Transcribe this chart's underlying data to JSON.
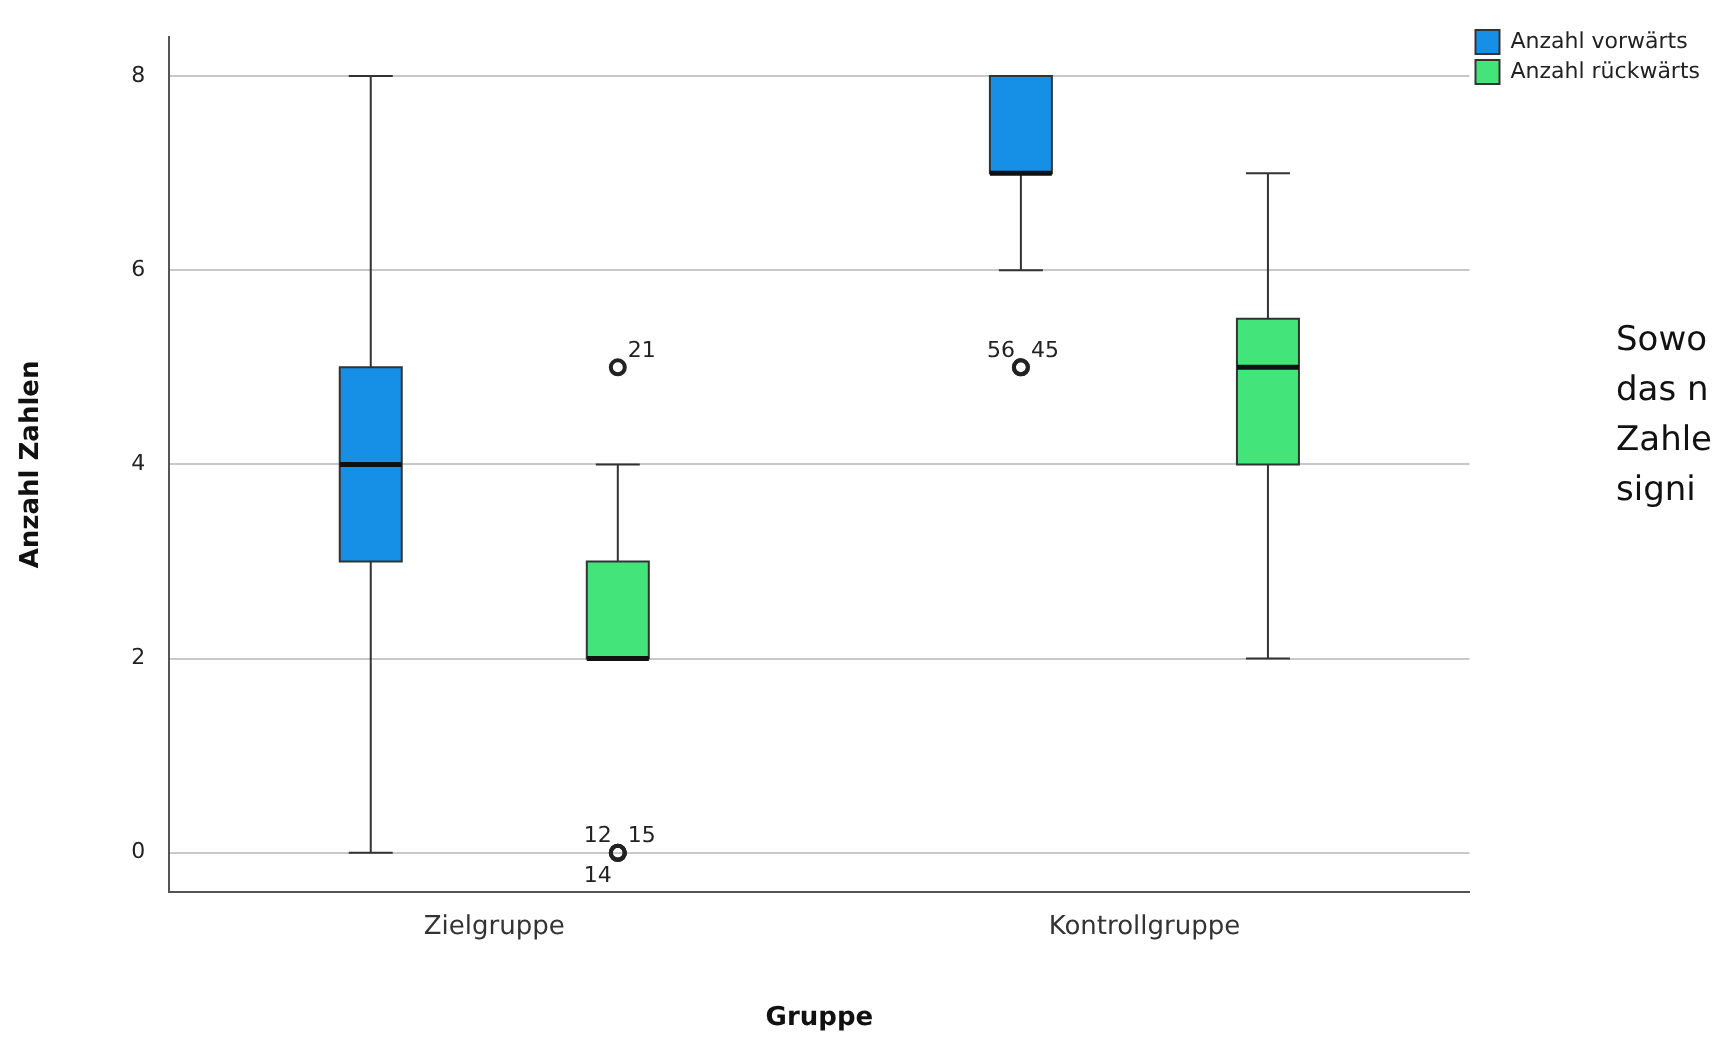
{
  "chart_data": {
    "type": "box",
    "xlabel": "Gruppe",
    "ylabel": "Anzahl Zahlen",
    "categories": [
      "Zielgruppe",
      "Kontrollgruppe"
    ],
    "series": [
      {
        "name": "Anzahl vorwärts",
        "color": "#1590e6",
        "boxes": [
          {
            "low": 0,
            "q1": 3,
            "median": 4,
            "q3": 5,
            "high": 8
          },
          {
            "low": 6,
            "q1": 7,
            "median": 7,
            "q3": 8,
            "high": 8,
            "outliers": [
              5,
              5
            ]
          }
        ]
      },
      {
        "name": "Anzahl rückwärts",
        "color": "#43e57b",
        "boxes": [
          {
            "low": 2,
            "q1": 2,
            "median": 2,
            "q3": 3,
            "high": 4,
            "outliers": [
              5,
              0,
              0,
              0
            ]
          },
          {
            "low": 2,
            "q1": 4,
            "median": 5,
            "q3": 5.5,
            "high": 7
          }
        ]
      }
    ],
    "ylim": [
      -0.4,
      8.4
    ],
    "yticks": [
      0,
      2,
      4,
      6,
      8
    ],
    "grid": "y",
    "legend": "top right",
    "annotations": [
      "56",
      "45",
      "21",
      "12",
      "15",
      "14",
      "Sowo",
      "das n",
      "Zahle",
      "signi"
    ]
  }
}
